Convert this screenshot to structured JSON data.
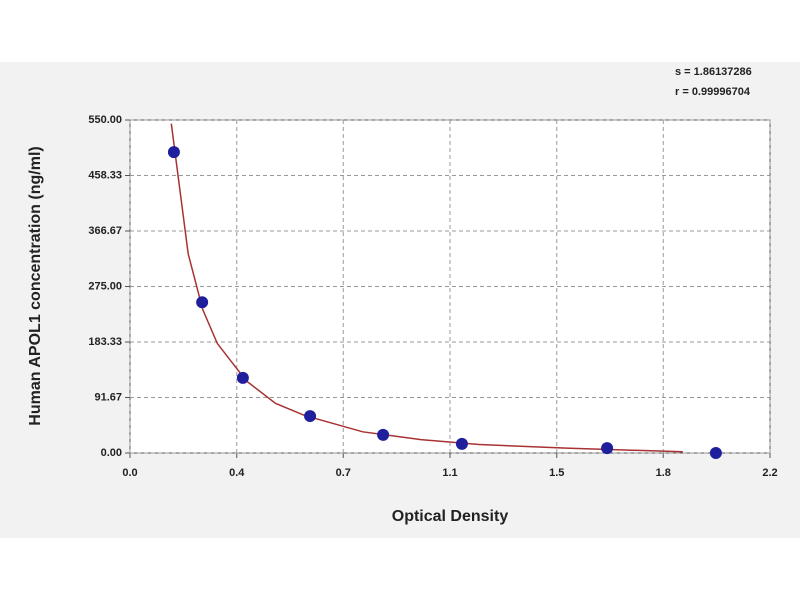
{
  "chart_data": {
    "type": "scatter",
    "xlabel": "Optical Density",
    "ylabel": "Human APOL1 concentration (ng/ml)",
    "annotations": [
      "s = 1.86137286",
      "r = 0.99996704"
    ],
    "xlim": [
      0,
      2.2
    ],
    "xticks": [
      {
        "value": 0,
        "label": "0.0"
      },
      {
        "value": 0.367,
        "label": "0.4"
      },
      {
        "value": 0.733,
        "label": "0.7"
      },
      1.1,
      {
        "value": 1.467,
        "label": "1.5"
      },
      {
        "value": 1.833,
        "label": "1.8"
      },
      2.2
    ],
    "ylim": [
      0,
      550
    ],
    "yticks": [
      {
        "value": 0,
        "label": "0.00"
      },
      91.67,
      183.33,
      {
        "value": 275,
        "label": "275.00"
      },
      366.67,
      458.33,
      {
        "value": 550,
        "label": "550.00"
      }
    ],
    "grid": true,
    "points": {
      "color": "#1f1f9e",
      "x": [
        0.151,
        0.248,
        0.388,
        0.619,
        0.87,
        1.141,
        1.64,
        2.014
      ],
      "y": [
        497,
        249,
        124,
        61,
        30,
        15,
        8,
        0
      ]
    },
    "curve": {
      "color": "#a83232",
      "x": [
        0.142,
        0.2,
        0.25,
        0.3,
        0.4,
        0.5,
        0.6,
        0.8,
        1.0,
        1.2,
        1.5,
        1.9
      ],
      "y": [
        544,
        329,
        237,
        181,
        119,
        82,
        62,
        35,
        22,
        14,
        8,
        2
      ]
    }
  }
}
